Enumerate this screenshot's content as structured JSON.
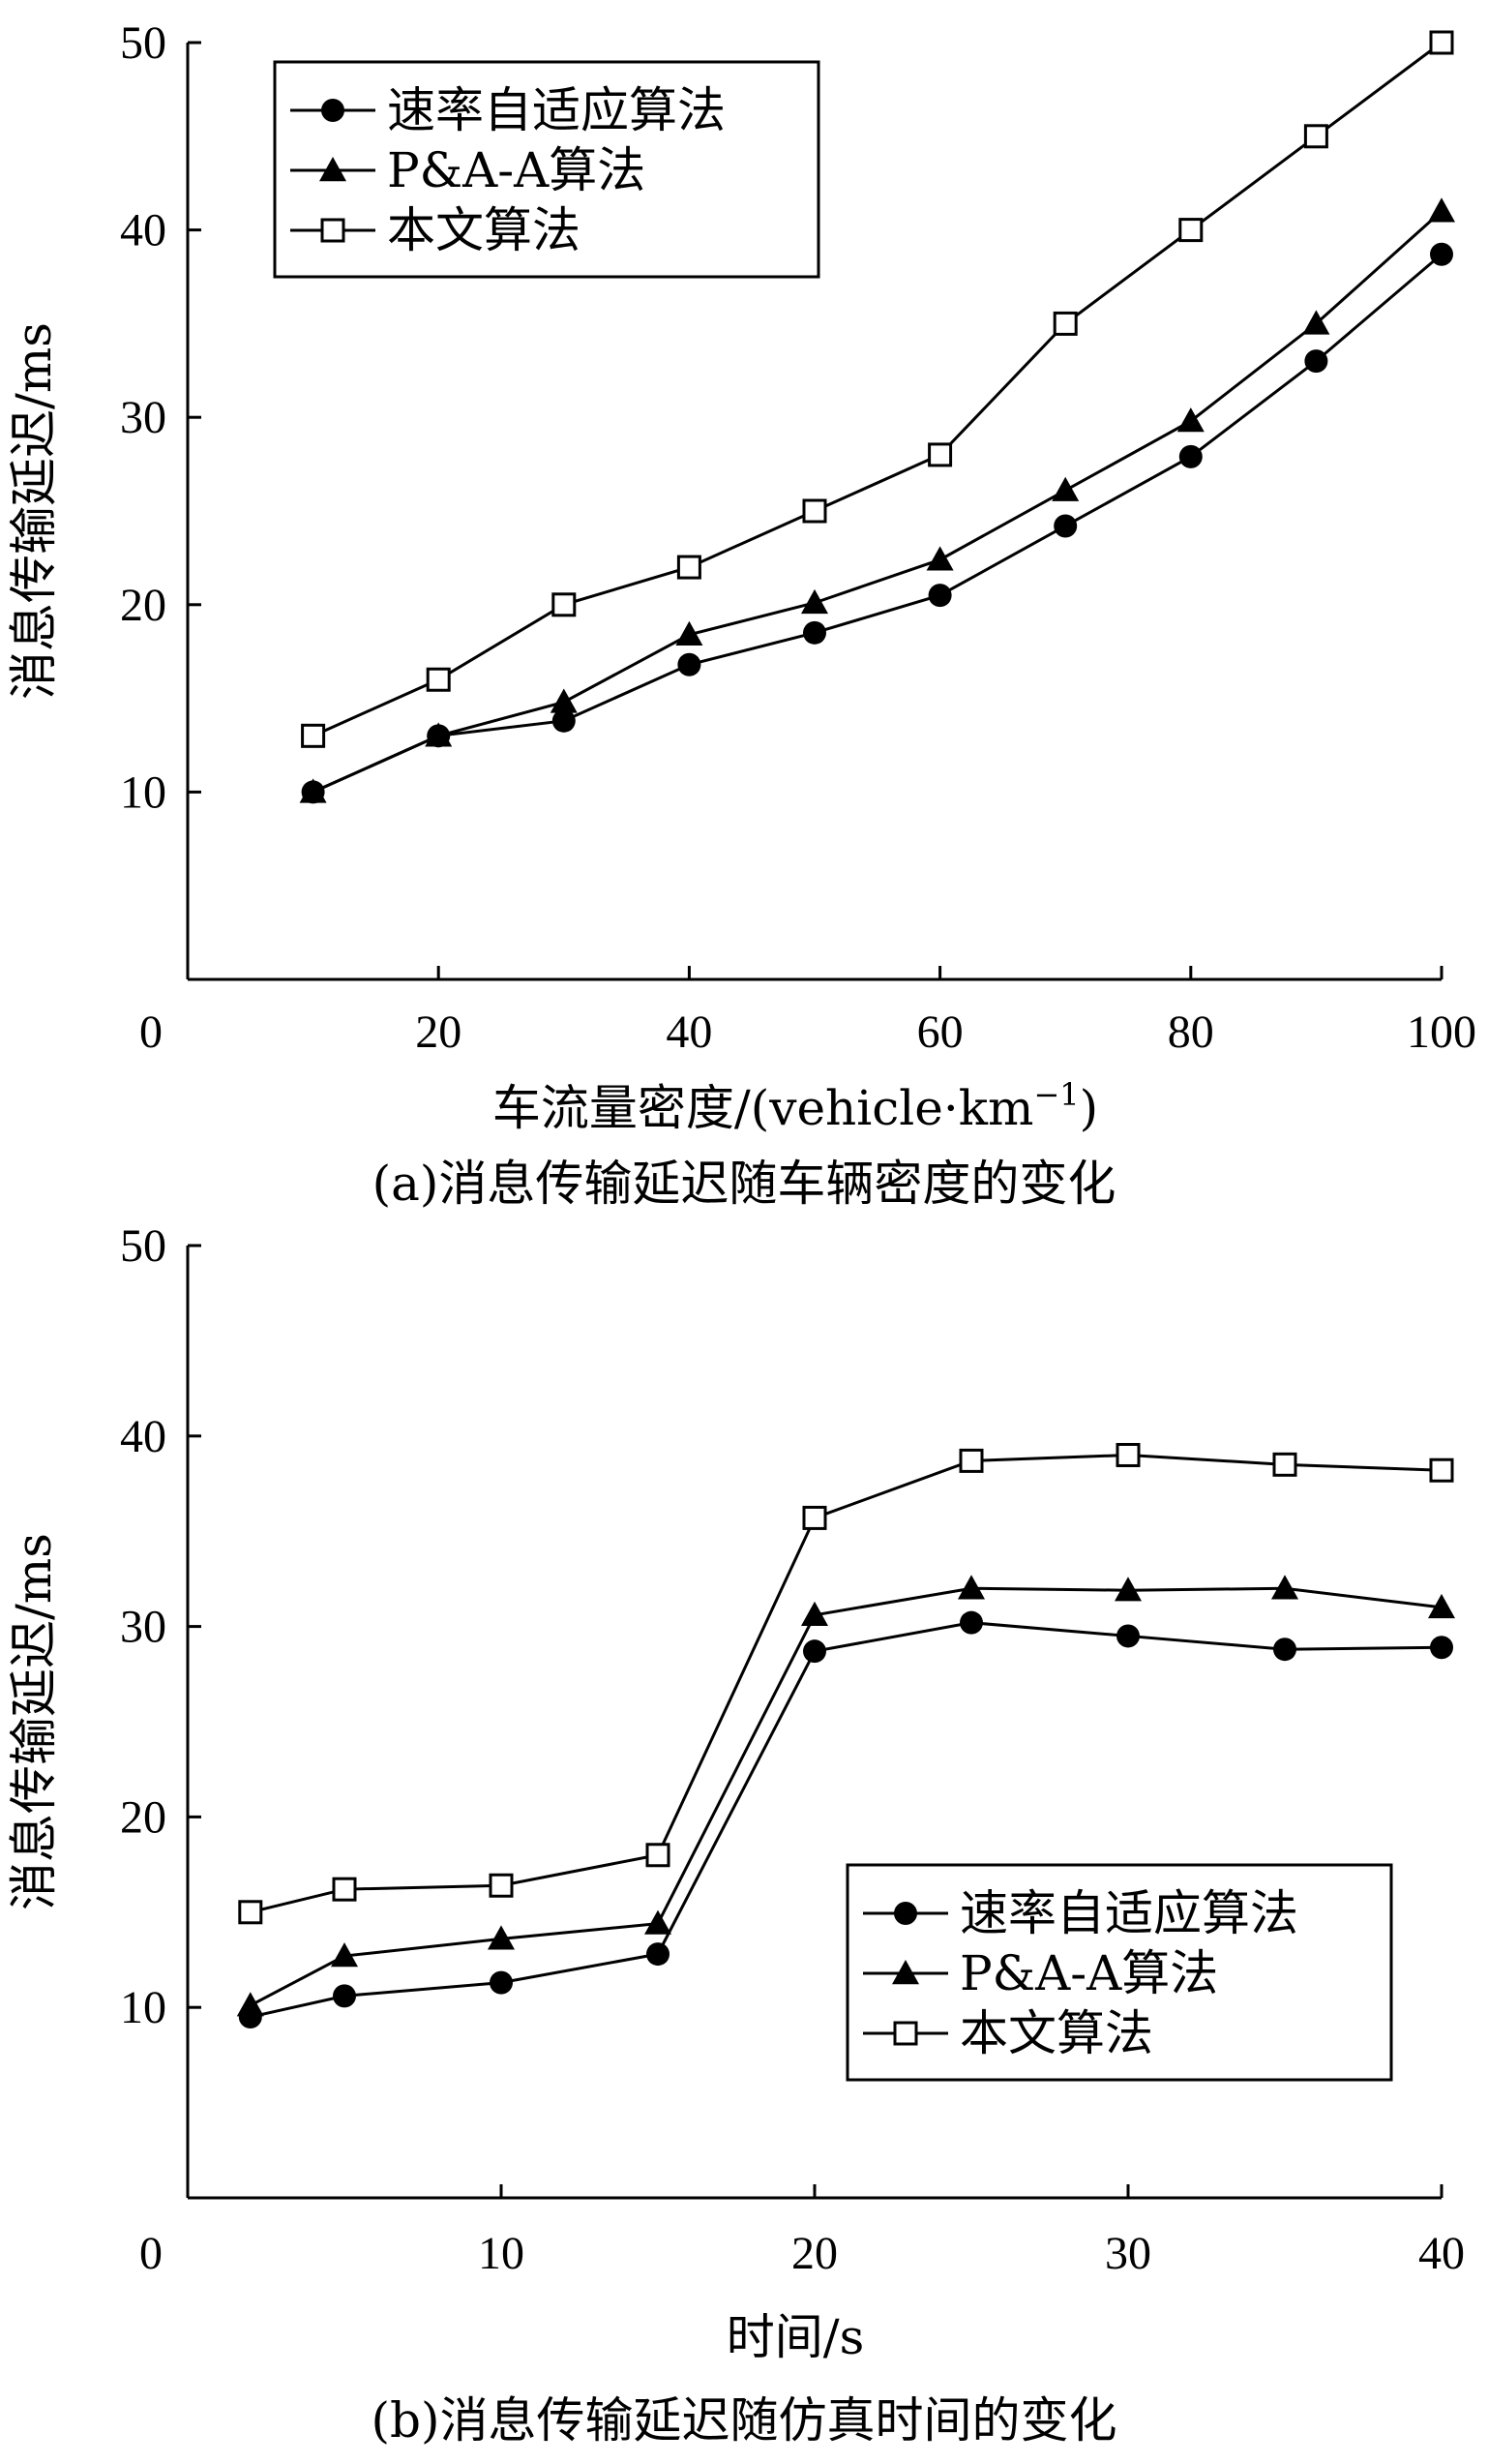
{
  "chart_data": [
    {
      "type": "line",
      "caption": "(a)消息传输延迟随车辆密度的变化",
      "xlabel": "车流量密度/(vehicle·km",
      "xlabel_sup": "−1",
      "xlabel_close": ")",
      "ylabel": "消息传输延迟/ms",
      "xlim": [
        0,
        100
      ],
      "ylim": [
        0,
        50
      ],
      "x_ticks": [
        0,
        20,
        40,
        60,
        80,
        100
      ],
      "y_ticks": [
        10,
        20,
        30,
        40,
        50
      ],
      "legend_position": "top-left",
      "grid": false,
      "series": [
        {
          "name": "速率自适应算法",
          "marker": "circle",
          "x": [
            10,
            20,
            30,
            40,
            50,
            60,
            70,
            80,
            90,
            100
          ],
          "y": [
            10,
            13,
            13.8,
            16.8,
            18.5,
            20.5,
            24.2,
            27.9,
            33,
            38.7
          ]
        },
        {
          "name": "P&A-A算法",
          "marker": "triangle",
          "x": [
            10,
            20,
            30,
            40,
            50,
            60,
            70,
            80,
            90,
            100
          ],
          "y": [
            10,
            13,
            14.8,
            18.4,
            20.1,
            22.4,
            26.1,
            29.8,
            35,
            41
          ]
        },
        {
          "name": "本文算法",
          "marker": "square",
          "x": [
            10,
            20,
            30,
            40,
            50,
            60,
            70,
            80,
            90,
            100
          ],
          "y": [
            13,
            16,
            20,
            22,
            25,
            28,
            35,
            40,
            45,
            50
          ]
        }
      ]
    },
    {
      "type": "line",
      "caption": "(b)消息传输延迟随仿真时间的变化",
      "xlabel": "时间/s",
      "ylabel": "消息传输延迟/ms",
      "xlim": [
        0,
        40
      ],
      "ylim": [
        0,
        50
      ],
      "x_ticks": [
        0,
        10,
        20,
        30,
        40
      ],
      "y_ticks": [
        10,
        20,
        30,
        40,
        50
      ],
      "legend_position": "bottom-right",
      "grid": false,
      "series": [
        {
          "name": "速率自适应算法",
          "marker": "circle",
          "x": [
            2,
            5,
            10,
            15,
            20,
            25,
            30,
            35,
            40
          ],
          "y": [
            9.5,
            10.6,
            11.3,
            12.8,
            28.7,
            30.2,
            29.5,
            28.8,
            28.9
          ]
        },
        {
          "name": "P&A-A算法",
          "marker": "triangle",
          "x": [
            2,
            5,
            10,
            15,
            20,
            25,
            30,
            35,
            40
          ],
          "y": [
            10.1,
            12.7,
            13.6,
            14.4,
            30.6,
            32,
            31.9,
            32,
            31
          ]
        },
        {
          "name": "本文算法",
          "marker": "square",
          "x": [
            2,
            5,
            10,
            15,
            20,
            25,
            30,
            35,
            40
          ],
          "y": [
            15,
            16.2,
            16.4,
            18,
            35.7,
            38.7,
            39,
            38.5,
            38.2
          ]
        }
      ]
    }
  ]
}
